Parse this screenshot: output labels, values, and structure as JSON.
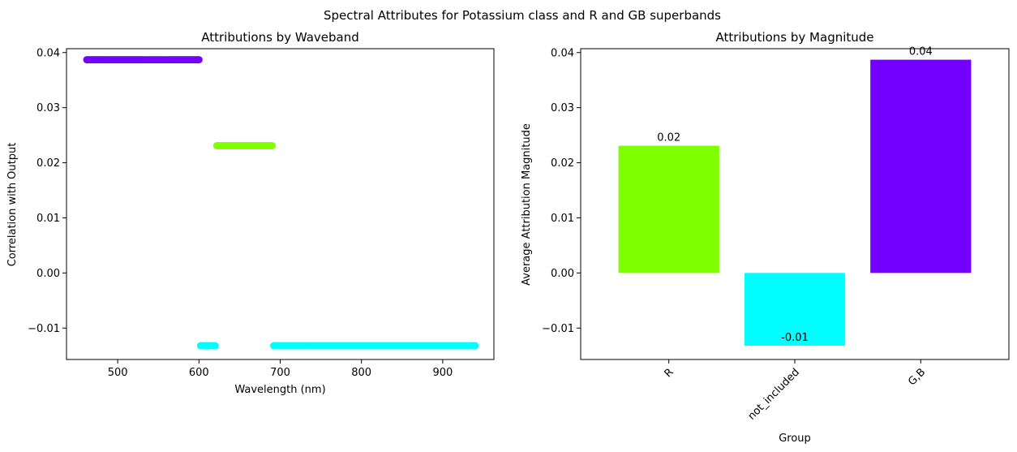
{
  "figure": {
    "suptitle": "Spectral Attributes for Potassium class and R and GB superbands"
  },
  "chart_data": [
    {
      "type": "scatter",
      "title": "Attributions by Waveband",
      "xlabel": "Wavelength (nm)",
      "ylabel": "Correlation with Output",
      "xlim": [
        437,
        963
      ],
      "ylim": [
        -0.0157,
        0.0407
      ],
      "xticks": [
        500,
        600,
        700,
        800,
        900
      ],
      "yticks": [
        -0.01,
        0.0,
        0.01,
        0.02,
        0.03,
        0.04
      ],
      "ytick_labels": [
        "−0.01",
        "0.00",
        "0.01",
        "0.02",
        "0.03",
        "0.04"
      ],
      "grid": false,
      "series": [
        {
          "group": "G,B",
          "color": "#7300ff",
          "x_start": 462,
          "x_end": 600,
          "x_step": 2,
          "y": 0.0387
        },
        {
          "group": "R",
          "color": "#80ff00",
          "x_start": 622,
          "x_end": 690,
          "x_step": 2,
          "y": 0.0231
        },
        {
          "group": "not_included",
          "color": "#00ffff",
          "x_start": 602,
          "x_end": 620,
          "x_step": 2,
          "y": -0.0132
        },
        {
          "group": "not_included",
          "color": "#00ffff",
          "x_start": 692,
          "x_end": 940,
          "x_step": 2,
          "y": -0.0132
        }
      ]
    },
    {
      "type": "bar",
      "title": "Attributions by Magnitude",
      "xlabel": "Group",
      "ylabel": "Average Attribution Magnitude",
      "categories": [
        "R",
        "not_included",
        "G,B"
      ],
      "values": [
        0.0231,
        -0.0132,
        0.0387
      ],
      "value_labels": [
        "0.02",
        "-0.01",
        "0.04"
      ],
      "colors": [
        "#80ff00",
        "#00ffff",
        "#7300ff"
      ],
      "ylim": [
        -0.0157,
        0.0407
      ],
      "yticks": [
        -0.01,
        0.0,
        0.01,
        0.02,
        0.03,
        0.04
      ],
      "ytick_labels": [
        "−0.01",
        "0.00",
        "0.01",
        "0.02",
        "0.03",
        "0.04"
      ],
      "xtick_rotation": 45,
      "grid": false
    }
  ]
}
